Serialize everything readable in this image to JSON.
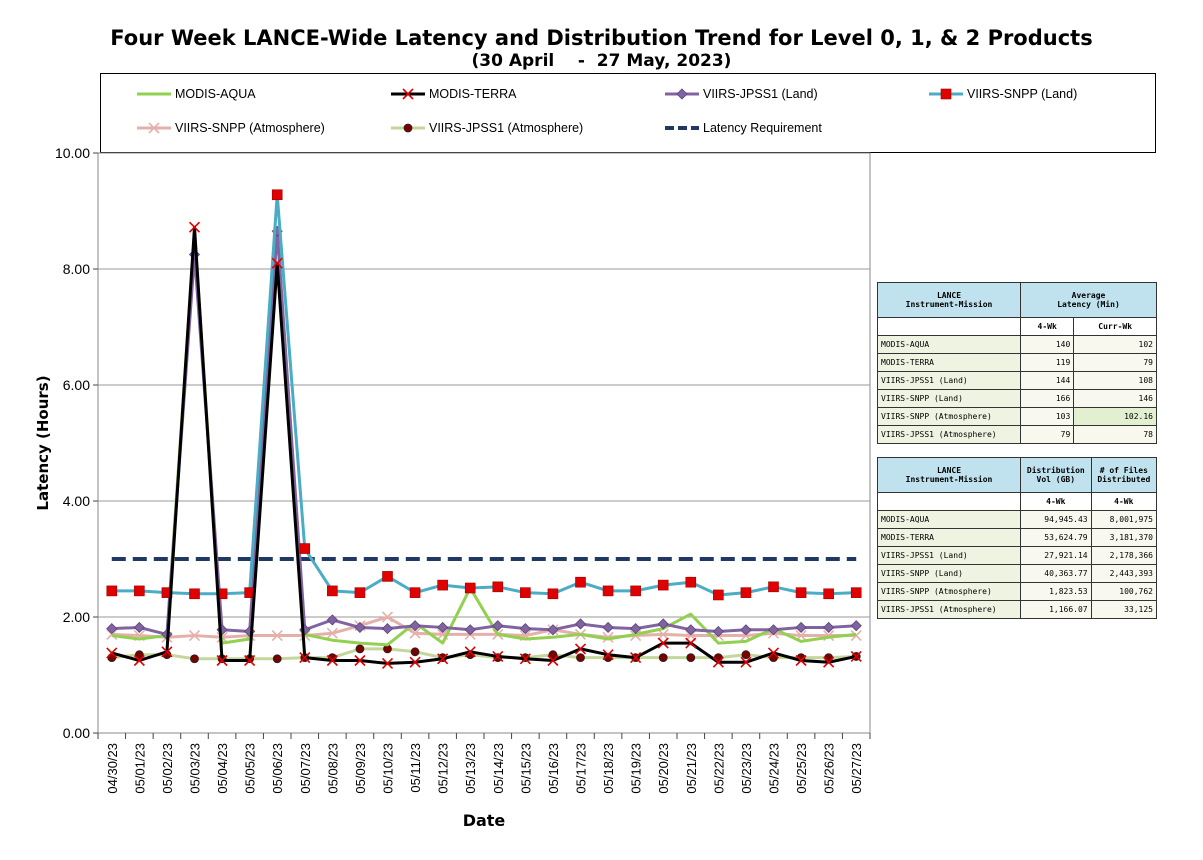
{
  "title": "Four Week LANCE-Wide Latency and Distribution Trend for Level 0, 1, & 2 Products",
  "subtitle": "(30 April    -  27 May, 2023)",
  "chart_data": {
    "type": "line",
    "title": "Four Week LANCE-Wide Latency and Distribution Trend for Level 0, 1, & 2 Products",
    "xlabel": "Date",
    "ylabel": "Latency (Hours)",
    "ylim": [
      0,
      10
    ],
    "yticks": [
      "0.00",
      "2.00",
      "4.00",
      "6.00",
      "8.00",
      "10.00"
    ],
    "grid": true,
    "legend_position": "top",
    "categories": [
      "04/30/23",
      "05/01/23",
      "05/02/23",
      "05/03/23",
      "05/04/23",
      "05/05/23",
      "05/06/23",
      "05/07/23",
      "05/08/23",
      "05/09/23",
      "05/10/23",
      "05/11/23",
      "05/12/23",
      "05/13/23",
      "05/14/23",
      "05/15/23",
      "05/16/23",
      "05/17/23",
      "05/18/23",
      "05/19/23",
      "05/20/23",
      "05/21/23",
      "05/22/23",
      "05/23/23",
      "05/24/23",
      "05/25/23",
      "05/26/23",
      "05/27/23"
    ],
    "series": [
      {
        "name": "MODIS-AQUA",
        "color": "#92d050",
        "marker": "none",
        "values": [
          1.68,
          1.62,
          1.68,
          8.6,
          1.55,
          1.62,
          8.7,
          1.7,
          1.6,
          1.55,
          1.52,
          1.9,
          1.55,
          2.5,
          1.7,
          1.62,
          1.65,
          1.7,
          1.62,
          1.7,
          1.8,
          2.05,
          1.55,
          1.58,
          1.8,
          1.58,
          1.65,
          1.7
        ]
      },
      {
        "name": "MODIS-TERRA",
        "color": "#000000",
        "marker": "x-red",
        "values": [
          1.38,
          1.25,
          1.4,
          8.72,
          1.25,
          1.25,
          8.1,
          1.3,
          1.25,
          1.25,
          1.2,
          1.22,
          1.28,
          1.4,
          1.32,
          1.28,
          1.25,
          1.45,
          1.35,
          1.3,
          1.55,
          1.55,
          1.22,
          1.22,
          1.38,
          1.25,
          1.22,
          1.32
        ]
      },
      {
        "name": "VIIRS-JPSS1 (Land)",
        "color": "#8064a2",
        "marker": "diamond",
        "values": [
          1.8,
          1.82,
          1.7,
          8.25,
          1.78,
          1.75,
          8.65,
          1.78,
          1.95,
          1.82,
          1.8,
          1.85,
          1.82,
          1.78,
          1.85,
          1.8,
          1.78,
          1.88,
          1.82,
          1.8,
          1.88,
          1.78,
          1.75,
          1.78,
          1.78,
          1.82,
          1.82,
          1.85
        ]
      },
      {
        "name": "VIIRS-SNPP (Land)",
        "color": "#4bacc6",
        "marker": "square-red",
        "values": [
          2.45,
          2.45,
          2.42,
          2.4,
          2.4,
          2.42,
          9.28,
          3.18,
          2.45,
          2.42,
          2.7,
          2.42,
          2.55,
          2.5,
          2.52,
          2.42,
          2.4,
          2.6,
          2.45,
          2.45,
          2.55,
          2.6,
          2.38,
          2.42,
          2.52,
          2.42,
          2.4,
          2.42
        ]
      },
      {
        "name": "VIIRS-SNPP (Atmosphere)",
        "color": "#e6b0aa",
        "marker": "x-pink",
        "values": [
          1.7,
          1.68,
          1.65,
          1.68,
          1.65,
          1.68,
          1.68,
          1.68,
          1.72,
          1.85,
          2.0,
          1.72,
          1.7,
          1.7,
          1.7,
          1.68,
          1.78,
          1.7,
          1.65,
          1.68,
          1.7,
          1.68,
          1.68,
          1.68,
          1.72,
          1.68,
          1.68,
          1.68
        ]
      },
      {
        "name": "VIIRS-JPSS1 (Atmosphere)",
        "color": "#c4d79b",
        "marker": "circle-dark",
        "values": [
          1.3,
          1.35,
          1.35,
          1.28,
          1.28,
          1.28,
          1.28,
          1.3,
          1.3,
          1.45,
          1.45,
          1.4,
          1.3,
          1.35,
          1.3,
          1.3,
          1.35,
          1.3,
          1.3,
          1.3,
          1.3,
          1.3,
          1.3,
          1.35,
          1.3,
          1.3,
          1.3,
          1.32
        ]
      },
      {
        "name": "Latency Requirement",
        "color": "#1f3864",
        "marker": "none",
        "dash": true,
        "values": [
          3,
          3,
          3,
          3,
          3,
          3,
          3,
          3,
          3,
          3,
          3,
          3,
          3,
          3,
          3,
          3,
          3,
          3,
          3,
          3,
          3,
          3,
          3,
          3,
          3,
          3,
          3,
          3
        ]
      }
    ]
  },
  "latency_table": {
    "h1": "LANCE\nInstrument-Mission",
    "h2": "Average\nLatency (Min)",
    "c1": "4-Wk",
    "c2": "Curr-Wk",
    "rows": [
      {
        "name": "MODIS-AQUA",
        "a": "140",
        "b": "102"
      },
      {
        "name": "MODIS-TERRA",
        "a": "119",
        "b": "79"
      },
      {
        "name": "VIIRS-JPSS1 (Land)",
        "a": "144",
        "b": "108"
      },
      {
        "name": "VIIRS-SNPP (Land)",
        "a": "166",
        "b": "146"
      },
      {
        "name": "VIIRS-SNPP (Atmosphere)",
        "a": "103",
        "b": "102.16"
      },
      {
        "name": "VIIRS-JPSS1 (Atmosphere)",
        "a": "79",
        "b": "78"
      }
    ]
  },
  "distribution_table": {
    "h1": "LANCE\nInstrument-Mission",
    "h2": "Distribution\nVol (GB)",
    "h3": "# of Files\nDistributed",
    "c1": "4-Wk",
    "c2": "4-Wk",
    "rows": [
      {
        "name": "MODIS-AQUA",
        "a": "94,945.43",
        "b": "8,001,975"
      },
      {
        "name": "MODIS-TERRA",
        "a": "53,624.79",
        "b": "3,181,370"
      },
      {
        "name": "VIIRS-JPSS1 (Land)",
        "a": "27,921.14",
        "b": "2,178,366"
      },
      {
        "name": "VIIRS-SNPP (Land)",
        "a": "40,363.77",
        "b": "2,443,393"
      },
      {
        "name": "VIIRS-SNPP (Atmosphere)",
        "a": "1,823.53",
        "b": "100,762"
      },
      {
        "name": "VIIRS-JPSS1 (Atmosphere)",
        "a": "1,166.07",
        "b": "33,125"
      }
    ]
  }
}
